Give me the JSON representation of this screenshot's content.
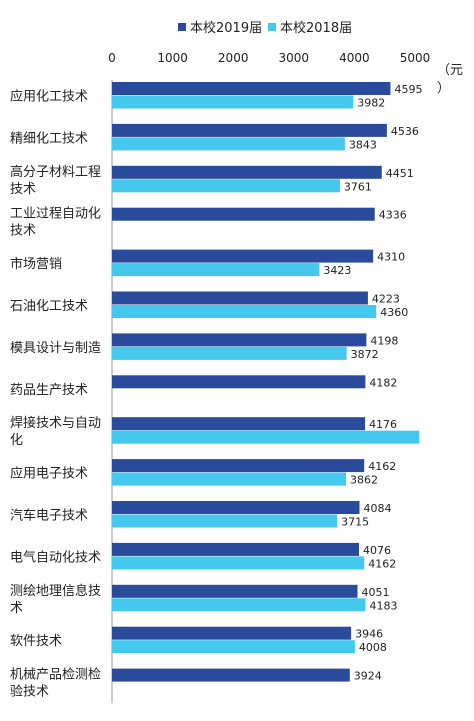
{
  "chart_data": {
    "type": "bar",
    "orientation": "horizontal",
    "unit": "（元）",
    "xlim": [
      0,
      5000
    ],
    "xticks": [
      0,
      1000,
      2000,
      3000,
      4000,
      5000
    ],
    "grid": false,
    "legend_position": "top",
    "categories": [
      "应用化工技术",
      "精细化工技术",
      "高分子材料工程技术",
      "工业过程自动化技术",
      "市场营销",
      "石油化工技术",
      "模具设计与制造",
      "药品生产技术",
      "焊接技术与自动化",
      "应用电子技术",
      "汽车电子技术",
      "电气自动化技术",
      "测绘地理信息技术",
      "软件技术",
      "机械产品检测检验技术"
    ],
    "series": [
      {
        "name": "本校2019届",
        "color": "#2a4b9b",
        "values": [
          4595,
          4536,
          4451,
          4336,
          4310,
          4223,
          4198,
          4182,
          4176,
          4162,
          4084,
          4076,
          4051,
          3946,
          3924
        ]
      },
      {
        "name": "本校2018届",
        "color": "#45c8ee",
        "values": [
          3982,
          3843,
          3761,
          null,
          3423,
          4360,
          3872,
          null,
          5070,
          3862,
          3715,
          4162,
          4183,
          4008,
          null
        ],
        "labels": [
          "3982",
          "3843",
          "3761",
          "",
          "3423",
          "4360",
          "3872",
          "",
          "",
          "3862",
          "3715",
          "4162",
          "4183",
          "4008",
          ""
        ]
      }
    ]
  }
}
